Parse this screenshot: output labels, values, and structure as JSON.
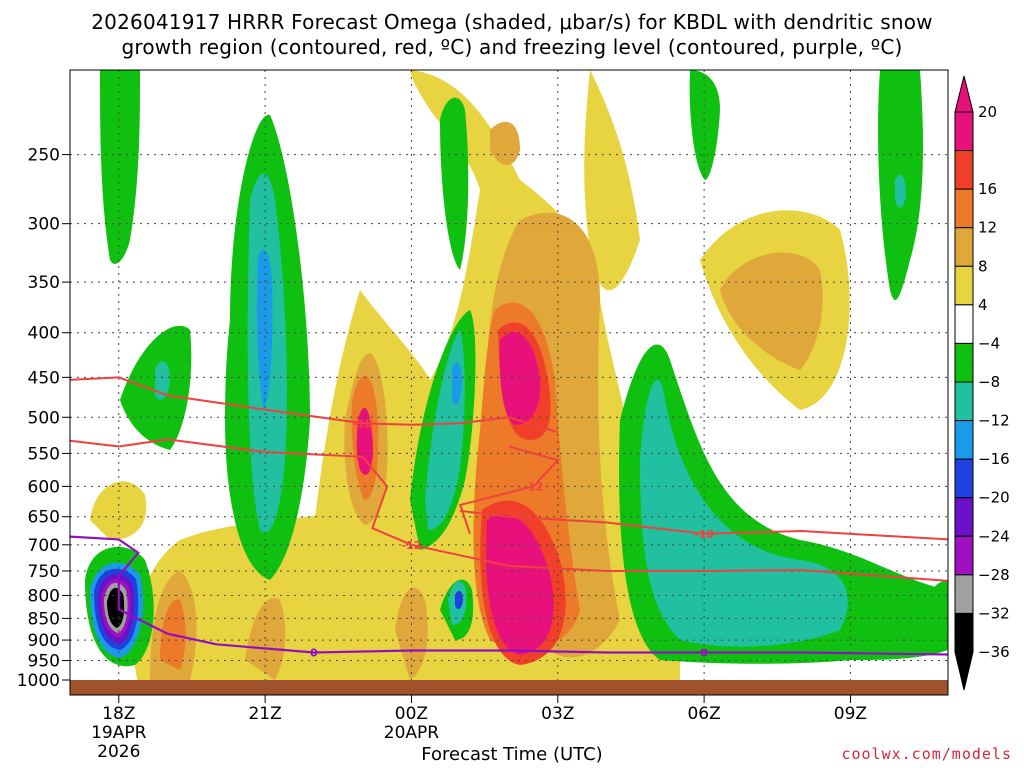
{
  "title_line1": "2026041917 HRRR Forecast Omega (shaded, μbar/s) for KBDL with dendritic snow",
  "title_line2": "growth region (contoured, red, ºC) and freezing level (contoured, purple, ºC)",
  "credit": "coolwx.com/models",
  "chart_data": {
    "type": "heatmap",
    "title": "2026041917 HRRR Forecast Omega (shaded, μbar/s) for KBDL with dendritic snow growth region (contoured, red, ºC) and freezing level (contoured, purple, ºC)",
    "xlabel": "Forecast Time (UTC)",
    "ylabel": "",
    "x_ticks": [
      {
        "label": "18Z",
        "sub": [
          "19APR",
          "2026"
        ]
      },
      {
        "label": "21Z",
        "sub": []
      },
      {
        "label": "00Z",
        "sub": [
          "20APR"
        ]
      },
      {
        "label": "03Z",
        "sub": []
      },
      {
        "label": "06Z",
        "sub": []
      },
      {
        "label": "09Z",
        "sub": []
      }
    ],
    "x_tick_hours": [
      0,
      3,
      6,
      9,
      12,
      15
    ],
    "xlim_hours": [
      -1,
      17
    ],
    "y_scale": "log-pressure (inverted)",
    "y_ticks": [
      250,
      300,
      350,
      400,
      450,
      500,
      550,
      600,
      650,
      700,
      750,
      800,
      850,
      900,
      950,
      1000
    ],
    "ylim_hpa": [
      200,
      1000
    ],
    "colorbar": {
      "labels": [
        "20",
        "16",
        "12",
        "8",
        "4",
        "−4",
        "−8",
        "−12",
        "−16",
        "−20",
        "−24",
        "−28",
        "−32",
        "−36"
      ],
      "colors": [
        "#e8107a",
        "#f0402a",
        "#ec7a28",
        "#e0a83a",
        "#e8d440",
        "#ffffff",
        "#10c010",
        "#20c0a0",
        "#1a9ae8",
        "#2040e0",
        "#6a10c8",
        "#a010c0",
        "#a0a0a0",
        "#000000"
      ]
    },
    "dendritic_contours": [
      {
        "label": "-18",
        "points": [
          [
            -1,
            453
          ],
          [
            0,
            450
          ],
          [
            1,
            472
          ],
          [
            3,
            490
          ],
          [
            5,
            508
          ],
          [
            6,
            510
          ],
          [
            7,
            508
          ],
          [
            8,
            500
          ],
          [
            9,
            520
          ]
        ]
      },
      {
        "label": "-12",
        "points": [
          [
            -1,
            532
          ],
          [
            0,
            540
          ],
          [
            1,
            530
          ],
          [
            3,
            548
          ],
          [
            5,
            555
          ],
          [
            5.5,
            600
          ],
          [
            5.2,
            670
          ],
          [
            6,
            700
          ],
          [
            8,
            740
          ],
          [
            10,
            750
          ],
          [
            12,
            750
          ],
          [
            14,
            748
          ],
          [
            17,
            770
          ]
        ]
      },
      {
        "label": "-18",
        "points": [
          [
            7,
            640
          ],
          [
            8,
            650
          ],
          [
            10,
            660
          ],
          [
            12,
            680
          ],
          [
            14,
            675
          ],
          [
            17,
            690
          ]
        ]
      },
      {
        "label": "-12",
        "points": [
          [
            8,
            540
          ],
          [
            9,
            560
          ],
          [
            8.5,
            600
          ],
          [
            7,
            630
          ],
          [
            7.2,
            680
          ]
        ]
      }
    ],
    "freezing_level": {
      "label": "0",
      "points": [
        [
          -1,
          685
        ],
        [
          0,
          690
        ],
        [
          0.4,
          715
        ],
        [
          0,
          760
        ],
        [
          0,
          830
        ],
        [
          1,
          885
        ],
        [
          2,
          910
        ],
        [
          4,
          930
        ],
        [
          6,
          925
        ],
        [
          8,
          925
        ],
        [
          10,
          930
        ],
        [
          12,
          930
        ],
        [
          14,
          930
        ],
        [
          17,
          935
        ]
      ]
    }
  }
}
